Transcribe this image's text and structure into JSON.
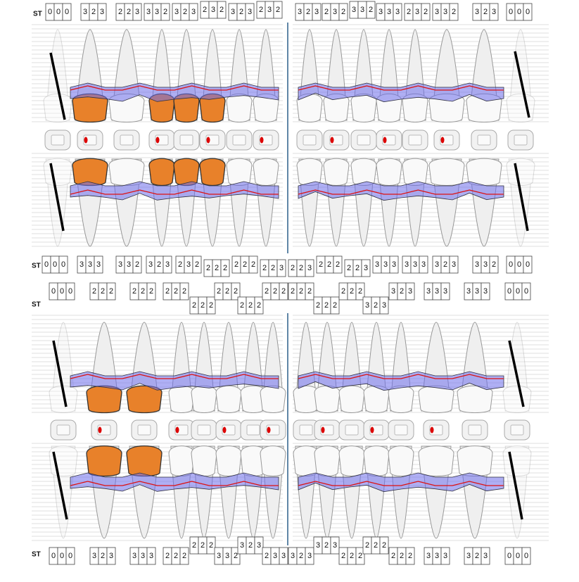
{
  "rows": [
    {
      "label": "ST",
      "boxes": [
        [
          0,
          0,
          0
        ],
        [
          3,
          2,
          3
        ],
        [
          2,
          2,
          3
        ],
        [
          3,
          3,
          2
        ],
        [
          3,
          2,
          3
        ],
        [
          2,
          3,
          2
        ],
        [
          3,
          2,
          3
        ],
        [
          2,
          3,
          2
        ],
        [
          3,
          2,
          3
        ],
        [
          2,
          3,
          2
        ],
        [
          3,
          3,
          2
        ],
        [
          3,
          3,
          3
        ],
        [
          2,
          3,
          2
        ],
        [
          3,
          3,
          2
        ],
        [
          3,
          2,
          3
        ],
        [
          0,
          0,
          0
        ]
      ]
    },
    {
      "label": "ST",
      "boxes": [
        [
          0,
          0,
          0
        ],
        [
          3,
          3,
          3
        ],
        [
          3,
          3,
          2
        ],
        [
          3,
          2,
          3
        ],
        [
          2,
          3,
          2
        ],
        [
          2,
          2,
          2
        ],
        [
          2,
          2,
          2
        ],
        [
          2,
          2,
          3
        ],
        [
          2,
          2,
          3
        ],
        [
          2,
          2,
          2
        ],
        [
          2,
          2,
          3
        ],
        [
          3,
          3,
          3
        ],
        [
          3,
          3,
          3
        ],
        [
          3,
          2,
          3
        ],
        [
          3,
          3,
          2
        ],
        [
          0,
          0,
          0
        ]
      ]
    },
    {
      "label": "ST",
      "boxes": [
        [
          0,
          0,
          0
        ],
        [
          2,
          2,
          2
        ],
        [
          2,
          2,
          2
        ],
        [
          2,
          2,
          2
        ],
        [
          2,
          2,
          2
        ],
        [
          2,
          2,
          2
        ],
        [
          2,
          2,
          2
        ],
        [
          2,
          2,
          2
        ],
        [
          2,
          2,
          2
        ],
        [
          2,
          2,
          2
        ],
        [
          2,
          2,
          2
        ],
        [
          3,
          2,
          3
        ],
        [
          3,
          2,
          3
        ],
        [
          3,
          3,
          3
        ],
        [
          3,
          3,
          3
        ],
        [
          0,
          0,
          0
        ]
      ]
    },
    {
      "label": "ST",
      "boxes": [
        [
          0,
          0,
          0
        ],
        [
          3,
          2,
          3
        ],
        [
          3,
          3,
          3
        ],
        [
          2,
          2,
          2
        ],
        [
          2,
          2,
          2
        ],
        [
          3,
          3,
          2
        ],
        [
          3,
          2,
          3
        ],
        [
          2,
          3,
          3
        ],
        [
          3,
          2,
          3
        ],
        [
          3,
          2,
          3
        ],
        [
          2,
          2,
          2
        ],
        [
          2,
          2,
          2
        ],
        [
          2,
          2,
          2
        ],
        [
          3,
          3,
          3
        ],
        [
          3,
          2,
          3
        ],
        [
          0,
          0,
          0
        ]
      ]
    }
  ]
}
